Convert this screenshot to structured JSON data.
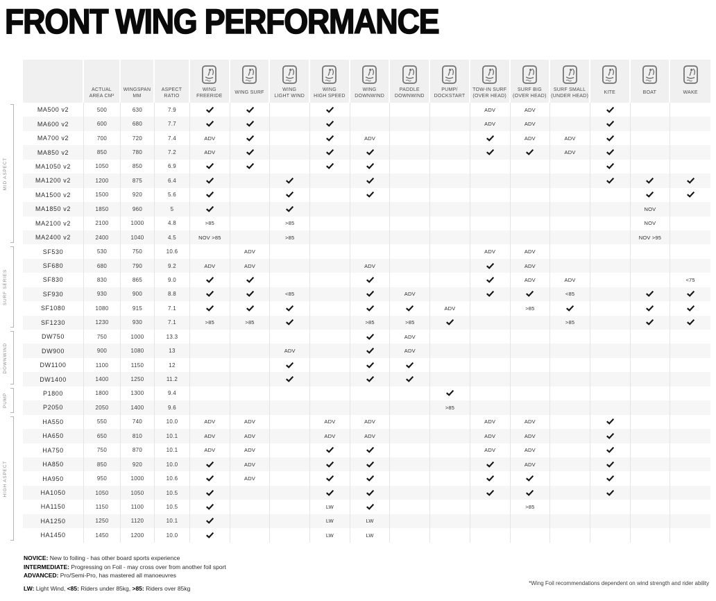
{
  "footnote": "*Wing Foil recommendations dependent on wind strength and rider ability",
  "colors": {
    "header_bg": "#f0f0f0",
    "alt_row_bg": "#f6f6f6",
    "divider": "#e4e4e4",
    "icon_gray": "#6f6f6f",
    "text_dark": "#2b2b2b",
    "bracket_gray": "#b3b3b3"
  },
  "legend": {
    "skill_levels": [
      {
        "term": "NOVICE:",
        "desc": " New to foiling - has other board sports experience"
      },
      {
        "term": "INTERMEDIATE:",
        "desc": " Progressing on Foil - may cross over from another foil sport"
      },
      {
        "term": "ADVANCED:",
        "desc": " Pro/Semi-Pro, has mastered all manoeuvres"
      }
    ],
    "abbreviations": [
      {
        "term": "LW:",
        "desc": " Light Wind, "
      },
      {
        "term": "<85:",
        "desc": " Riders under 85kg, "
      },
      {
        "term": ">85:",
        "desc": " Riders over 85kg"
      }
    ]
  },
  "chart_data": {
    "type": "table",
    "title": "FRONT WING PERFORMANCE",
    "spec_columns": [
      {
        "id": "actual-area",
        "lines": [
          "ACTUAL",
          "AREA CM²"
        ]
      },
      {
        "id": "wingspan",
        "lines": [
          "WINGSPAN",
          "MM"
        ]
      },
      {
        "id": "aspect-ratio",
        "lines": [
          "ASPECT",
          "RATIO"
        ]
      }
    ],
    "activity_columns": [
      {
        "id": "wing-freeride",
        "lines": [
          "WING",
          "FREERIDE"
        ]
      },
      {
        "id": "wing-surf",
        "lines": [
          "WING SURF"
        ]
      },
      {
        "id": "wing-light-wind",
        "lines": [
          "WING",
          "LIGHT WIND"
        ]
      },
      {
        "id": "wing-high-speed",
        "lines": [
          "WING",
          "HIGH SPEED"
        ]
      },
      {
        "id": "wing-downwind",
        "lines": [
          "WING",
          "DOWNWIND"
        ]
      },
      {
        "id": "paddle-downwind",
        "lines": [
          "PADDLE",
          "DOWNWIND"
        ]
      },
      {
        "id": "pump-dockstart",
        "lines": [
          "PUMP/",
          "DOCKSTART"
        ]
      },
      {
        "id": "tow-in-surf",
        "lines": [
          "TOW-IN SURF",
          "(OVER HEAD)"
        ]
      },
      {
        "id": "surf-big",
        "lines": [
          "SURF BIG",
          "(OVER HEAD)"
        ]
      },
      {
        "id": "surf-small",
        "lines": [
          "SURF SMALL",
          "(UNDER HEAD)"
        ]
      },
      {
        "id": "kite",
        "lines": [
          "KITE"
        ]
      },
      {
        "id": "boat",
        "lines": [
          "BOAT"
        ]
      },
      {
        "id": "wake",
        "lines": [
          "WAKE"
        ]
      }
    ],
    "groups": [
      {
        "label": "MID ASPECT",
        "rows": [
          {
            "model": "MA500 v2",
            "area": "500",
            "wingspan": "630",
            "aspect": "7.9",
            "cells": [
              "check",
              "check",
              "",
              "check",
              "",
              "",
              "",
              "ADV",
              "ADV",
              "",
              "check",
              "",
              ""
            ]
          },
          {
            "model": "MA600 v2",
            "area": "600",
            "wingspan": "680",
            "aspect": "7.7",
            "cells": [
              "check",
              "check",
              "",
              "check",
              "",
              "",
              "",
              "ADV",
              "ADV",
              "",
              "check",
              "",
              ""
            ]
          },
          {
            "model": "MA700 v2",
            "area": "700",
            "wingspan": "720",
            "aspect": "7.4",
            "cells": [
              "ADV",
              "check",
              "",
              "check",
              "ADV",
              "",
              "",
              "check",
              "ADV",
              "ADV",
              "check",
              "",
              ""
            ]
          },
          {
            "model": "MA850 v2",
            "area": "850",
            "wingspan": "780",
            "aspect": "7.2",
            "cells": [
              "ADV",
              "check",
              "",
              "check",
              "check",
              "",
              "",
              "check",
              "check",
              "ADV",
              "check",
              "",
              ""
            ]
          },
          {
            "model": "MA1050 v2",
            "area": "1050",
            "wingspan": "850",
            "aspect": "6.9",
            "cells": [
              "check",
              "check",
              "",
              "check",
              "check",
              "",
              "",
              "",
              "",
              "",
              "check",
              "",
              ""
            ]
          },
          {
            "model": "MA1200 v2",
            "area": "1200",
            "wingspan": "875",
            "aspect": "6.4",
            "cells": [
              "check",
              "",
              "check",
              "",
              "check",
              "",
              "",
              "",
              "",
              "",
              "check",
              "check",
              "check"
            ]
          },
          {
            "model": "MA1500 v2",
            "area": "1500",
            "wingspan": "920",
            "aspect": "5.6",
            "cells": [
              "check",
              "",
              "check",
              "",
              "check",
              "",
              "",
              "",
              "",
              "",
              "",
              "check",
              "check"
            ]
          },
          {
            "model": "MA1850 v2",
            "area": "1850",
            "wingspan": "960",
            "aspect": "5",
            "cells": [
              "check",
              "",
              "check",
              "",
              "",
              "",
              "",
              "",
              "",
              "",
              "",
              "NOV",
              ""
            ]
          },
          {
            "model": "MA2100 v2",
            "area": "2100",
            "wingspan": "1000",
            "aspect": "4.8",
            "cells": [
              ">85",
              "",
              ">85",
              "",
              "",
              "",
              "",
              "",
              "",
              "",
              "",
              "NOV",
              ""
            ]
          },
          {
            "model": "MA2400 v2",
            "area": "2400",
            "wingspan": "1040",
            "aspect": "4.5",
            "cells": [
              "NOV >85",
              "",
              ">85",
              "",
              "",
              "",
              "",
              "",
              "",
              "",
              "",
              "NOV >95",
              ""
            ]
          }
        ]
      },
      {
        "label": "SURF SERIES",
        "rows": [
          {
            "model": "SF530",
            "area": "530",
            "wingspan": "750",
            "aspect": "10.6",
            "cells": [
              "",
              "ADV",
              "",
              "",
              "",
              "",
              "",
              "ADV",
              "ADV",
              "",
              "",
              "",
              ""
            ]
          },
          {
            "model": "SF680",
            "area": "680",
            "wingspan": "790",
            "aspect": "9.2",
            "cells": [
              "ADV",
              "ADV",
              "",
              "",
              "ADV",
              "",
              "",
              "check",
              "ADV",
              "",
              "",
              "",
              ""
            ]
          },
          {
            "model": "SF830",
            "area": "830",
            "wingspan": "865",
            "aspect": "9.0",
            "cells": [
              "check",
              "check",
              "",
              "",
              "check",
              "",
              "",
              "check",
              "ADV",
              "ADV",
              "",
              "",
              "<75"
            ]
          },
          {
            "model": "SF930",
            "area": "930",
            "wingspan": "900",
            "aspect": "8.8",
            "cells": [
              "check",
              "check",
              "<85",
              "",
              "check",
              "ADV",
              "",
              "check",
              "check",
              "<85",
              "",
              "check",
              "check"
            ]
          },
          {
            "model": "SF1080",
            "area": "1080",
            "wingspan": "915",
            "aspect": "7.1",
            "cells": [
              "check",
              "check",
              "check",
              "",
              "check",
              "check",
              "ADV",
              "",
              ">85",
              "check",
              "",
              "check",
              "check"
            ]
          },
          {
            "model": "SF1230",
            "area": "1230",
            "wingspan": "930",
            "aspect": "7.1",
            "cells": [
              ">85",
              ">85",
              "check",
              "",
              ">85",
              ">85",
              "check",
              "",
              "",
              ">85",
              "",
              "check",
              "check"
            ]
          }
        ]
      },
      {
        "label": "DOWNWIND",
        "rows": [
          {
            "model": "DW750",
            "area": "750",
            "wingspan": "1000",
            "aspect": "13.3",
            "cells": [
              "",
              "",
              "",
              "",
              "check",
              "ADV",
              "",
              "",
              "",
              "",
              "",
              "",
              ""
            ]
          },
          {
            "model": "DW900",
            "area": "900",
            "wingspan": "1080",
            "aspect": "13",
            "cells": [
              "",
              "",
              "ADV",
              "",
              "check",
              "ADV",
              "",
              "",
              "",
              "",
              "",
              "",
              ""
            ]
          },
          {
            "model": "DW1100",
            "area": "1100",
            "wingspan": "1150",
            "aspect": "12",
            "cells": [
              "",
              "",
              "check",
              "",
              "check",
              "check",
              "",
              "",
              "",
              "",
              "",
              "",
              ""
            ]
          },
          {
            "model": "DW1400",
            "area": "1400",
            "wingspan": "1250",
            "aspect": "11.2",
            "cells": [
              "",
              "",
              "check",
              "",
              "check",
              "check",
              "",
              "",
              "",
              "",
              "",
              "",
              ""
            ]
          }
        ]
      },
      {
        "label": "PUMP",
        "rows": [
          {
            "model": "P1800",
            "area": "1800",
            "wingspan": "1300",
            "aspect": "9.4",
            "cells": [
              "",
              "",
              "",
              "",
              "",
              "",
              "check",
              "",
              "",
              "",
              "",
              "",
              ""
            ]
          },
          {
            "model": "P2050",
            "area": "2050",
            "wingspan": "1400",
            "aspect": "9.6",
            "cells": [
              "",
              "",
              "",
              "",
              "",
              "",
              ">85",
              "",
              "",
              "",
              "",
              "",
              ""
            ]
          }
        ]
      },
      {
        "label": "HIGH ASPECT",
        "rows": [
          {
            "model": "HA550",
            "area": "550",
            "wingspan": "740",
            "aspect": "10.0",
            "cells": [
              "ADV",
              "ADV",
              "",
              "ADV",
              "ADV",
              "",
              "",
              "ADV",
              "ADV",
              "",
              "check",
              "",
              ""
            ]
          },
          {
            "model": "HA650",
            "area": "650",
            "wingspan": "810",
            "aspect": "10.1",
            "cells": [
              "ADV",
              "ADV",
              "",
              "ADV",
              "ADV",
              "",
              "",
              "ADV",
              "ADV",
              "",
              "check",
              "",
              ""
            ]
          },
          {
            "model": "HA750",
            "area": "750",
            "wingspan": "870",
            "aspect": "10.1",
            "cells": [
              "ADV",
              "ADV",
              "",
              "check",
              "check",
              "",
              "",
              "ADV",
              "ADV",
              "",
              "check",
              "",
              ""
            ]
          },
          {
            "model": "HA850",
            "area": "850",
            "wingspan": "920",
            "aspect": "10.0",
            "cells": [
              "check",
              "ADV",
              "",
              "check",
              "check",
              "",
              "",
              "check",
              "ADV",
              "",
              "check",
              "",
              ""
            ]
          },
          {
            "model": "HA950",
            "area": "950",
            "wingspan": "1000",
            "aspect": "10.6",
            "cells": [
              "check",
              "ADV",
              "",
              "check",
              "check",
              "",
              "",
              "check",
              "check",
              "",
              "check",
              "",
              ""
            ]
          },
          {
            "model": "HA1050",
            "area": "1050",
            "wingspan": "1050",
            "aspect": "10.5",
            "cells": [
              "check",
              "",
              "",
              "check",
              "check",
              "",
              "",
              "check",
              "check",
              "",
              "check",
              "",
              ""
            ]
          },
          {
            "model": "HA1150",
            "area": "1150",
            "wingspan": "1100",
            "aspect": "10.5",
            "cells": [
              "check",
              "",
              "",
              "LW",
              "check",
              "",
              "",
              "",
              ">85",
              "",
              "",
              "",
              ""
            ]
          },
          {
            "model": "HA1250",
            "area": "1250",
            "wingspan": "1120",
            "aspect": "10.1",
            "cells": [
              "check",
              "",
              "",
              "LW",
              "LW",
              "",
              "",
              "",
              "",
              "",
              "",
              "",
              ""
            ]
          },
          {
            "model": "HA1450",
            "area": "1450",
            "wingspan": "1200",
            "aspect": "10.0",
            "cells": [
              "check",
              "",
              "",
              "LW",
              "LW",
              "",
              "",
              "",
              "",
              "",
              "",
              "",
              ""
            ]
          }
        ]
      }
    ]
  }
}
